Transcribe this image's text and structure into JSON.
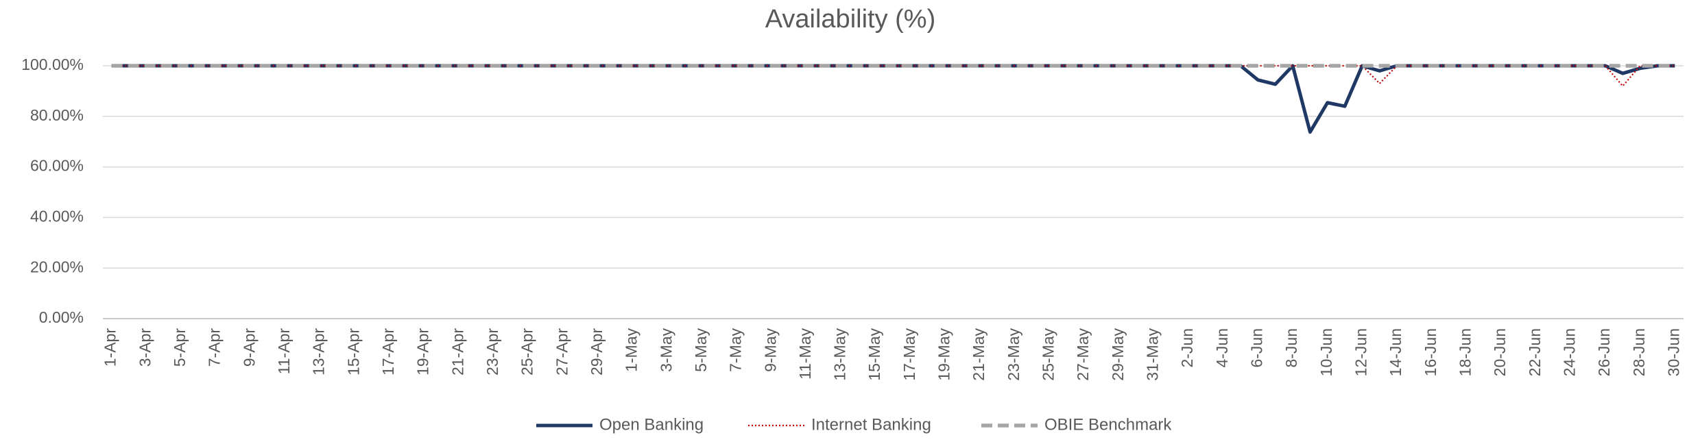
{
  "chart_data": {
    "type": "line",
    "title": "Availability (%)",
    "categories": [
      "1-Apr",
      null,
      "3-Apr",
      null,
      "5-Apr",
      null,
      "7-Apr",
      null,
      "9-Apr",
      null,
      "11-Apr",
      null,
      "13-Apr",
      null,
      "15-Apr",
      null,
      "17-Apr",
      null,
      "19-Apr",
      null,
      "21-Apr",
      null,
      "23-Apr",
      null,
      "25-Apr",
      null,
      "27-Apr",
      null,
      "29-Apr",
      null,
      "1-May",
      null,
      "3-May",
      null,
      "5-May",
      null,
      "7-May",
      null,
      "9-May",
      null,
      "11-May",
      null,
      "13-May",
      null,
      "15-May",
      null,
      "17-May",
      null,
      "19-May",
      null,
      "21-May",
      null,
      "23-May",
      null,
      "25-May",
      null,
      "27-May",
      null,
      "29-May",
      null,
      "31-May",
      null,
      "2-Jun",
      null,
      "4-Jun",
      null,
      "6-Jun",
      null,
      "8-Jun",
      null,
      "10-Jun",
      null,
      "12-Jun",
      null,
      "14-Jun",
      null,
      "16-Jun",
      null,
      "18-Jun",
      null,
      "20-Jun",
      null,
      "22-Jun",
      null,
      "24-Jun",
      null,
      "26-Jun",
      null,
      "28-Jun",
      null,
      "30-Jun"
    ],
    "series": [
      {
        "name": "Open Banking",
        "color": "#203864",
        "style": "solid",
        "values": [
          100,
          100,
          100,
          100,
          100,
          100,
          100,
          100,
          100,
          100,
          100,
          100,
          100,
          100,
          100,
          100,
          100,
          100,
          100,
          100,
          100,
          100,
          100,
          100,
          100,
          100,
          100,
          100,
          100,
          100,
          100,
          100,
          100,
          100,
          100,
          100,
          100,
          100,
          100,
          100,
          100,
          100,
          100,
          100,
          100,
          100,
          100,
          100,
          100,
          100,
          100,
          100,
          100,
          100,
          100,
          100,
          100,
          100,
          100,
          100,
          100,
          100,
          100,
          100,
          100,
          100,
          94.4,
          92.7,
          100,
          73.8,
          85.4,
          84,
          100,
          98,
          100,
          100,
          100,
          100,
          100,
          100,
          100,
          100,
          100,
          100,
          100,
          100,
          100,
          97,
          99,
          100,
          100
        ]
      },
      {
        "name": "Internet Banking",
        "color": "#c00000",
        "style": "dotted",
        "values": [
          100,
          100,
          100,
          100,
          100,
          100,
          100,
          100,
          100,
          100,
          100,
          100,
          100,
          100,
          100,
          100,
          100,
          100,
          100,
          100,
          100,
          100,
          100,
          100,
          100,
          100,
          100,
          100,
          100,
          100,
          100,
          100,
          100,
          100,
          100,
          100,
          100,
          100,
          100,
          100,
          100,
          100,
          100,
          100,
          100,
          100,
          100,
          100,
          100,
          100,
          100,
          100,
          100,
          100,
          100,
          100,
          100,
          100,
          100,
          100,
          100,
          100,
          100,
          100,
          100,
          100,
          100,
          100,
          100,
          100,
          100,
          100,
          100,
          93,
          100,
          100,
          100,
          100,
          100,
          100,
          100,
          100,
          100,
          100,
          100,
          100,
          100,
          92,
          100,
          100,
          100
        ]
      },
      {
        "name": "OBIE Benchmark",
        "color": "#a6a6a6",
        "style": "dashed",
        "values": [
          100,
          100,
          100,
          100,
          100,
          100,
          100,
          100,
          100,
          100,
          100,
          100,
          100,
          100,
          100,
          100,
          100,
          100,
          100,
          100,
          100,
          100,
          100,
          100,
          100,
          100,
          100,
          100,
          100,
          100,
          100,
          100,
          100,
          100,
          100,
          100,
          100,
          100,
          100,
          100,
          100,
          100,
          100,
          100,
          100,
          100,
          100,
          100,
          100,
          100,
          100,
          100,
          100,
          100,
          100,
          100,
          100,
          100,
          100,
          100,
          100,
          100,
          100,
          100,
          100,
          100,
          100,
          100,
          100,
          100,
          100,
          100,
          100,
          100,
          100,
          100,
          100,
          100,
          100,
          100,
          100,
          100,
          100,
          100,
          100,
          100,
          100,
          100,
          100,
          100,
          100
        ]
      }
    ],
    "ylim": [
      0,
      100
    ],
    "yticks": [
      {
        "value": 0,
        "label": "0.00%"
      },
      {
        "value": 20,
        "label": "20.00%"
      },
      {
        "value": 40,
        "label": "40.00%"
      },
      {
        "value": 60,
        "label": "60.00%"
      },
      {
        "value": 80,
        "label": "80.00%"
      },
      {
        "value": 100,
        "label": "100.00%"
      }
    ],
    "grid": true,
    "legend": "bottom"
  }
}
